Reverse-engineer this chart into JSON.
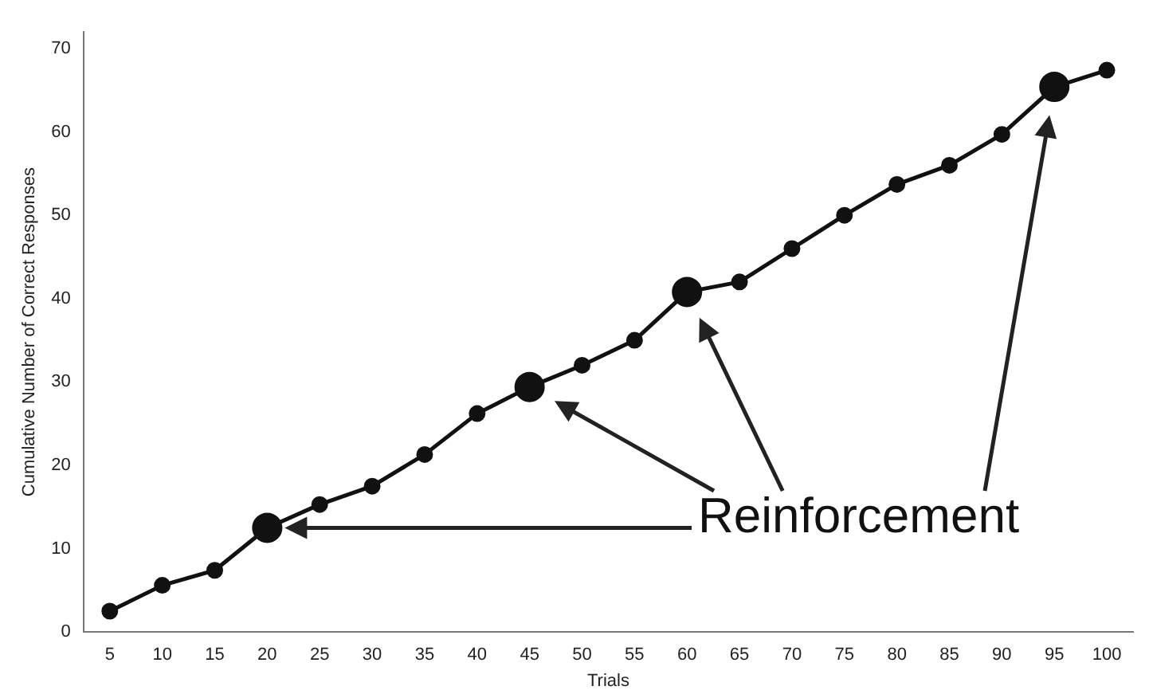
{
  "chart_data": {
    "type": "line",
    "xlabel": "Trials",
    "ylabel": "Cumulative Number of Correct Responses",
    "categories": [
      "5",
      "10",
      "15",
      "20",
      "25",
      "30",
      "35",
      "40",
      "45",
      "50",
      "55",
      "60",
      "65",
      "70",
      "75",
      "80",
      "85",
      "90",
      "95",
      "100"
    ],
    "series": [
      {
        "color": "#111111",
        "values": [
          2.5,
          5.6,
          7.4,
          12.5,
          15.3,
          17.5,
          21.3,
          26.2,
          29.4,
          32,
          35,
          40.8,
          42,
          46,
          50,
          53.7,
          56,
          59.7,
          65.4,
          67.4
        ],
        "marker": "circle"
      },
      {
        "type": "scatter",
        "color": "#111111",
        "x": [
          "20",
          "45",
          "60",
          "95"
        ],
        "values": [
          12.5,
          29.4,
          40.8,
          65.4
        ],
        "marker": "circle"
      }
    ],
    "ylim": [
      0,
      72
    ],
    "yticks": [
      0,
      10,
      20,
      30,
      40,
      50,
      60,
      70
    ],
    "grid": false,
    "legend": false,
    "annotations": [
      "Reinforcement"
    ]
  }
}
